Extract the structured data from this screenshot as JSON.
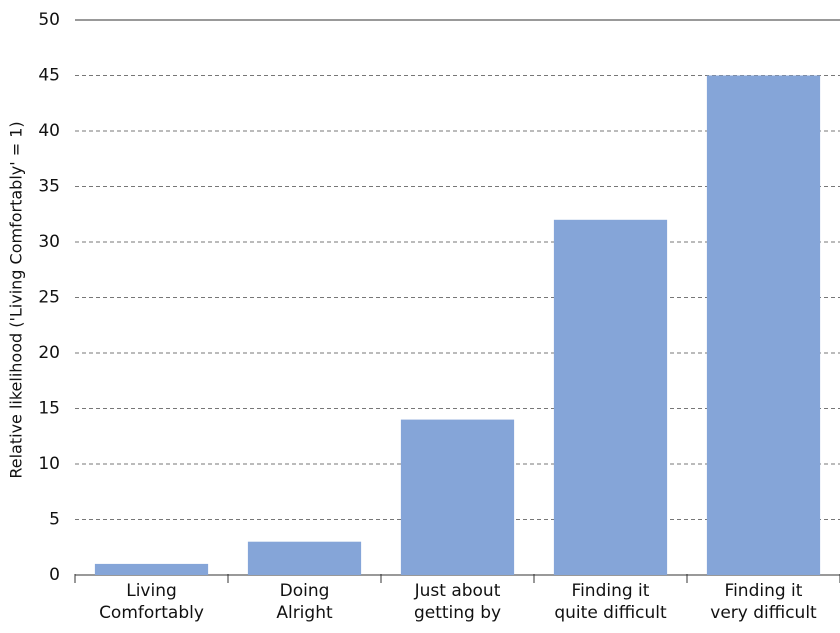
{
  "chart_data": {
    "type": "bar",
    "y_label": "Relative likelihood ('Living Comfortably' = 1)",
    "categories": [
      "Living\nComfortably",
      "Doing\nAlright",
      "Just about\ngetting by",
      "Finding it\nquite difficult",
      "Finding it\nvery difficult"
    ],
    "values": [
      1,
      3,
      14,
      32,
      45
    ],
    "color": "#85a5d8",
    "ylim": [
      0,
      50
    ],
    "yticks": [
      0,
      5,
      10,
      15,
      20,
      25,
      30,
      35,
      40,
      45,
      50
    ],
    "grid": true
  }
}
